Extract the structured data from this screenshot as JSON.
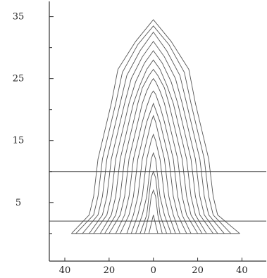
{
  "chart_data": {
    "type": "line",
    "title": "",
    "xlabel": "",
    "ylabel": "",
    "xlim": [
      -47,
      51
    ],
    "ylim": [
      -1.5,
      37
    ],
    "x_tick_values": [
      -40,
      -20,
      0,
      20,
      40
    ],
    "x_tick_labels": [
      "40",
      "20",
      "0",
      "20",
      "40"
    ],
    "y_tick_values": [
      5,
      15,
      25,
      35
    ],
    "y_tick_labels": [
      "5",
      "15",
      "25",
      "35"
    ],
    "grid": false,
    "legend": "none",
    "reference_lines_y": [
      10,
      2
    ],
    "series": [
      {
        "points": [
          [
            -2,
            0
          ],
          [
            0,
            3
          ],
          [
            2,
            0
          ]
        ]
      },
      {
        "points": [
          [
            -4,
            0
          ],
          [
            -2,
            3
          ],
          [
            -1,
            6
          ],
          [
            0,
            7
          ],
          [
            1,
            6
          ],
          [
            2,
            3
          ],
          [
            4,
            0
          ]
        ]
      },
      {
        "points": [
          [
            -6,
            0
          ],
          [
            -3,
            3
          ],
          [
            -2,
            6
          ],
          [
            -1,
            9
          ],
          [
            0,
            10
          ],
          [
            1,
            9
          ],
          [
            2,
            6
          ],
          [
            3,
            3
          ],
          [
            6,
            0
          ]
        ]
      },
      {
        "points": [
          [
            -8,
            0
          ],
          [
            -5,
            3
          ],
          [
            -3,
            6
          ],
          [
            -2,
            9
          ],
          [
            -1,
            12
          ],
          [
            0,
            13
          ],
          [
            1,
            12
          ],
          [
            2,
            9
          ],
          [
            3,
            6
          ],
          [
            5,
            3
          ],
          [
            8,
            0
          ]
        ]
      },
      {
        "points": [
          [
            -10,
            0
          ],
          [
            -7,
            3
          ],
          [
            -5,
            6
          ],
          [
            -4,
            9
          ],
          [
            -3,
            12
          ],
          [
            -1,
            15
          ],
          [
            0,
            16
          ],
          [
            1,
            15
          ],
          [
            3,
            12
          ],
          [
            4,
            9
          ],
          [
            5,
            6
          ],
          [
            7,
            3
          ],
          [
            10,
            0
          ]
        ]
      },
      {
        "points": [
          [
            -12,
            0
          ],
          [
            -9,
            3
          ],
          [
            -7,
            6
          ],
          [
            -6,
            9
          ],
          [
            -5,
            12
          ],
          [
            -3,
            15
          ],
          [
            -1,
            18
          ],
          [
            0,
            19
          ],
          [
            1,
            18
          ],
          [
            3,
            15
          ],
          [
            5,
            12
          ],
          [
            6,
            9
          ],
          [
            7,
            6
          ],
          [
            9,
            3
          ],
          [
            12,
            0
          ]
        ]
      },
      {
        "points": [
          [
            -15,
            0
          ],
          [
            -11,
            3
          ],
          [
            -9,
            6
          ],
          [
            -8,
            9
          ],
          [
            -7,
            12
          ],
          [
            -5,
            15
          ],
          [
            -3,
            18
          ],
          [
            -1,
            20
          ],
          [
            0,
            21
          ],
          [
            1,
            20
          ],
          [
            3,
            18
          ],
          [
            5,
            15
          ],
          [
            7,
            12
          ],
          [
            8,
            9
          ],
          [
            9,
            6
          ],
          [
            11,
            3
          ],
          [
            15,
            0
          ]
        ]
      },
      {
        "points": [
          [
            -17,
            0
          ],
          [
            -13,
            3
          ],
          [
            -11,
            6
          ],
          [
            -10,
            9
          ],
          [
            -9,
            12
          ],
          [
            -7,
            15
          ],
          [
            -5,
            18
          ],
          [
            -3,
            20.5
          ],
          [
            -1,
            22.5
          ],
          [
            0,
            23
          ],
          [
            1,
            22.5
          ],
          [
            3,
            20.5
          ],
          [
            5,
            18
          ],
          [
            7,
            15
          ],
          [
            9,
            12
          ],
          [
            10,
            9
          ],
          [
            11,
            6
          ],
          [
            13,
            3
          ],
          [
            17,
            0
          ]
        ]
      },
      {
        "points": [
          [
            -20,
            0
          ],
          [
            -15,
            3
          ],
          [
            -13,
            6
          ],
          [
            -12,
            9
          ],
          [
            -11,
            12
          ],
          [
            -9,
            15
          ],
          [
            -7,
            18
          ],
          [
            -5,
            21
          ],
          [
            -3,
            23
          ],
          [
            -1,
            24.5
          ],
          [
            0,
            25
          ],
          [
            1,
            24.5
          ],
          [
            3,
            23
          ],
          [
            5,
            21
          ],
          [
            7,
            18
          ],
          [
            9,
            15
          ],
          [
            11,
            12
          ],
          [
            12,
            9
          ],
          [
            13,
            6
          ],
          [
            15,
            3
          ],
          [
            20,
            0
          ]
        ]
      },
      {
        "points": [
          [
            -22,
            0
          ],
          [
            -17,
            3
          ],
          [
            -15,
            6
          ],
          [
            -14,
            9
          ],
          [
            -13,
            12
          ],
          [
            -11,
            15
          ],
          [
            -9,
            18
          ],
          [
            -7,
            21
          ],
          [
            -5,
            23.5
          ],
          [
            -2,
            25.5
          ],
          [
            0,
            26.5
          ],
          [
            2,
            25.5
          ],
          [
            5,
            23.5
          ],
          [
            7,
            21
          ],
          [
            9,
            18
          ],
          [
            11,
            15
          ],
          [
            13,
            12
          ],
          [
            14,
            9
          ],
          [
            15,
            6
          ],
          [
            17,
            3
          ],
          [
            22,
            0
          ]
        ]
      },
      {
        "points": [
          [
            -24,
            0
          ],
          [
            -19,
            3
          ],
          [
            -17,
            6
          ],
          [
            -16,
            9
          ],
          [
            -15,
            12
          ],
          [
            -13,
            15
          ],
          [
            -11,
            18
          ],
          [
            -9,
            21
          ],
          [
            -6,
            24
          ],
          [
            -3,
            26.5
          ],
          [
            0,
            28
          ],
          [
            3,
            26.5
          ],
          [
            6,
            24
          ],
          [
            9,
            21
          ],
          [
            11,
            18
          ],
          [
            13,
            15
          ],
          [
            15,
            12
          ],
          [
            16,
            9
          ],
          [
            17,
            6
          ],
          [
            19,
            3
          ],
          [
            24,
            0
          ]
        ]
      },
      {
        "points": [
          [
            -27,
            0
          ],
          [
            -21,
            3
          ],
          [
            -19,
            6
          ],
          [
            -18,
            9
          ],
          [
            -17,
            12
          ],
          [
            -15,
            15
          ],
          [
            -13,
            18
          ],
          [
            -11,
            21
          ],
          [
            -8,
            24.5
          ],
          [
            -4,
            27.5
          ],
          [
            0,
            29.5
          ],
          [
            4,
            27.5
          ],
          [
            8,
            24.5
          ],
          [
            11,
            21
          ],
          [
            13,
            18
          ],
          [
            15,
            15
          ],
          [
            17,
            12
          ],
          [
            18,
            9
          ],
          [
            19,
            6
          ],
          [
            21,
            3
          ],
          [
            27,
            0
          ]
        ]
      },
      {
        "points": [
          [
            -29,
            0
          ],
          [
            -23,
            3
          ],
          [
            -21,
            6
          ],
          [
            -20,
            9
          ],
          [
            -19,
            12
          ],
          [
            -17,
            15
          ],
          [
            -15,
            18
          ],
          [
            -13,
            21
          ],
          [
            -10,
            25
          ],
          [
            -5,
            28.5
          ],
          [
            0,
            31
          ],
          [
            5,
            28.5
          ],
          [
            10,
            25
          ],
          [
            13,
            21
          ],
          [
            15,
            18
          ],
          [
            17,
            15
          ],
          [
            19,
            12
          ],
          [
            20,
            9
          ],
          [
            21,
            6
          ],
          [
            23,
            3
          ],
          [
            29,
            0
          ]
        ]
      },
      {
        "points": [
          [
            -32,
            0
          ],
          [
            -25,
            3
          ],
          [
            -23,
            6
          ],
          [
            -22,
            9
          ],
          [
            -21,
            12
          ],
          [
            -19,
            15
          ],
          [
            -17,
            18
          ],
          [
            -15,
            21
          ],
          [
            -12,
            25.5
          ],
          [
            -6,
            29.5
          ],
          [
            0,
            32.5
          ],
          [
            6,
            29.5
          ],
          [
            12,
            25.5
          ],
          [
            15,
            21
          ],
          [
            17,
            18
          ],
          [
            19,
            15
          ],
          [
            21,
            12
          ],
          [
            22,
            9
          ],
          [
            23,
            6
          ],
          [
            25,
            3
          ],
          [
            32,
            0
          ]
        ]
      },
      {
        "points": [
          [
            -35,
            0
          ],
          [
            -27,
            3
          ],
          [
            -25,
            6
          ],
          [
            -24,
            9
          ],
          [
            -23,
            12
          ],
          [
            -21,
            15
          ],
          [
            -19,
            18
          ],
          [
            -17,
            21
          ],
          [
            -14,
            26
          ],
          [
            -7,
            30.5
          ],
          [
            0,
            33.5
          ],
          [
            7,
            30.5
          ],
          [
            14,
            26
          ],
          [
            17,
            21
          ],
          [
            19,
            18
          ],
          [
            21,
            15
          ],
          [
            23,
            12
          ],
          [
            24,
            9
          ],
          [
            25,
            6
          ],
          [
            27,
            3
          ],
          [
            35,
            0
          ]
        ]
      },
      {
        "points": [
          [
            -37,
            0
          ],
          [
            -29,
            3
          ],
          [
            -27,
            6
          ],
          [
            -26,
            9
          ],
          [
            -25,
            12
          ],
          [
            -23,
            15
          ],
          [
            -21,
            18
          ],
          [
            -19,
            21
          ],
          [
            -16,
            26.5
          ],
          [
            -8,
            31
          ],
          [
            0,
            34.5
          ],
          [
            8,
            31
          ],
          [
            16,
            26.5
          ],
          [
            19,
            21
          ],
          [
            21,
            18
          ],
          [
            23,
            15
          ],
          [
            25,
            12
          ],
          [
            26,
            9
          ],
          [
            27,
            6
          ],
          [
            29,
            3
          ],
          [
            39,
            0
          ]
        ]
      }
    ]
  }
}
